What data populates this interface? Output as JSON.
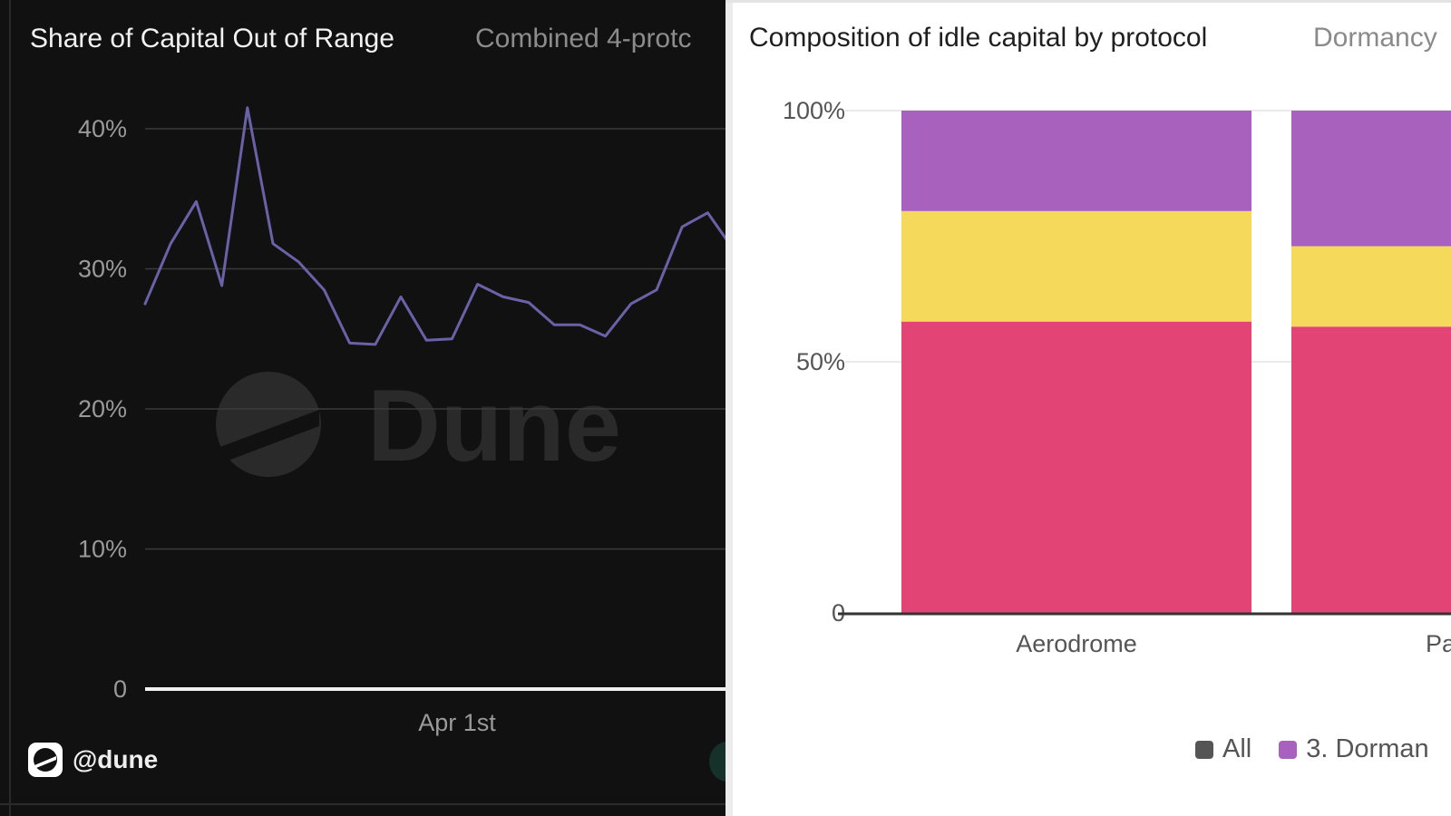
{
  "left_panel": {
    "title": "Share of Capital Out of Range",
    "subtitle": "Combined 4-protc",
    "branding": "@dune",
    "watermark": "Dune"
  },
  "right_panel": {
    "title": "Composition of idle capital by protocol",
    "subtitle": "Dormancy"
  },
  "colors": {
    "line": "#6a62a8",
    "dormant": "#a862bd",
    "middle": "#f5d95b",
    "bottom": "#e24575",
    "all": "#555555"
  },
  "chart_data": [
    {
      "type": "line",
      "title": "Share of Capital Out of Range",
      "y_ticks": [
        "0",
        "10%",
        "20%",
        "30%",
        "40%"
      ],
      "ylim": [
        0,
        40
      ],
      "x_tick_labels": [
        "Apr 1st"
      ],
      "grid": true,
      "series": [
        {
          "values": [
            27.5,
            31.8,
            34.8,
            28.8,
            41.5,
            31.8,
            30.5,
            28.5,
            24.7,
            24.6,
            28.0,
            24.9,
            25.0,
            28.9,
            28.0,
            27.6,
            26.0,
            26.0,
            25.2,
            27.5,
            28.5,
            33.0,
            34.0,
            31.4
          ]
        }
      ]
    },
    {
      "type": "bar",
      "stacked": true,
      "title": "Composition of idle capital by protocol",
      "categories": [
        "Aerodrome",
        "Pancak"
      ],
      "y_ticks": [
        "0",
        "50%",
        "100%"
      ],
      "ylim": [
        0,
        100
      ],
      "grid": true,
      "legend_position": "bottom",
      "legend": [
        "All",
        "3. Dorman"
      ],
      "series": [
        {
          "color_key": "bottom",
          "values": [
            58,
            57
          ]
        },
        {
          "color_key": "middle",
          "values": [
            22,
            16
          ]
        },
        {
          "name": "3. Dorman",
          "color_key": "dormant",
          "values": [
            20,
            27
          ]
        }
      ]
    }
  ]
}
